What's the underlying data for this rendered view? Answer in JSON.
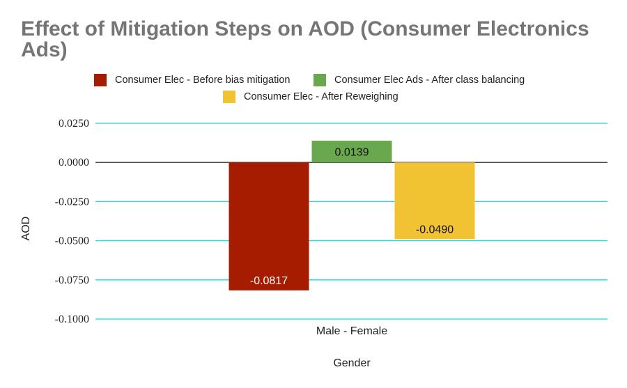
{
  "chart_data": {
    "type": "bar",
    "title": "Effect of Mitigation Steps on AOD (Consumer Electronics Ads)",
    "xlabel": "Gender",
    "ylabel": "AOD",
    "categories": [
      "Male - Female"
    ],
    "series": [
      {
        "name": "Consumer Elec - Before bias mitigation",
        "values": [
          -0.0817
        ],
        "labels": [
          "-0.0817"
        ],
        "color": "#a61c00"
      },
      {
        "name": "Consumer Elec Ads - After class balancing",
        "values": [
          0.0139
        ],
        "labels": [
          "0.0139"
        ],
        "color": "#6aa84f"
      },
      {
        "name": "Consumer Elec - After Reweighing",
        "values": [
          -0.049
        ],
        "labels": [
          "-0.0490"
        ],
        "color": "#f1c232"
      }
    ],
    "ylim": [
      -0.1,
      0.025
    ],
    "yticks": [
      0.025,
      0,
      -0.025,
      -0.05,
      -0.075,
      -0.1
    ],
    "ytick_labels": [
      "0.0250",
      "0.0000",
      "-0.0250",
      "-0.0500",
      "-0.0750",
      "-0.1000"
    ],
    "grid": true,
    "grid_color": "#00e5e5",
    "legend_position": "top"
  }
}
